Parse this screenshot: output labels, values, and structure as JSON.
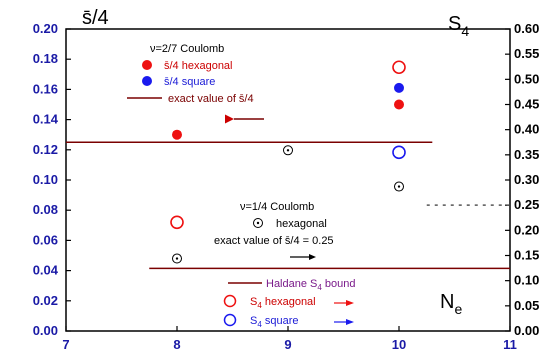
{
  "chart_data": {
    "type": "scatter",
    "x_axis": {
      "range": [
        7,
        11
      ],
      "ticks": [
        "7",
        "8",
        "9",
        "10",
        "11"
      ],
      "label": "N",
      "label_sub": "e"
    },
    "y_left": {
      "range": [
        0,
        0.2
      ],
      "ticks": [
        "0.00",
        "0.02",
        "0.04",
        "0.06",
        "0.08",
        "0.10",
        "0.12",
        "0.14",
        "0.16",
        "0.18",
        "0.20"
      ],
      "label": "s̄/4"
    },
    "y_right": {
      "range": [
        0,
        0.6
      ],
      "ticks": [
        "0.00",
        "0.05",
        "0.10",
        "0.15",
        "0.20",
        "0.25",
        "0.30",
        "0.35",
        "0.40",
        "0.45",
        "0.50",
        "0.55",
        "0.60"
      ],
      "label": "S",
      "label_sub": "4"
    },
    "series": [
      {
        "name": "s̄/4 hexagonal",
        "axis": "left",
        "marker": "filled",
        "color": "#ee1111",
        "points": [
          [
            8,
            0.13
          ],
          [
            10,
            0.15
          ]
        ]
      },
      {
        "name": "s̄/4 square",
        "axis": "left",
        "marker": "filled",
        "color": "#1a1aee",
        "points": [
          [
            10,
            0.161
          ]
        ]
      },
      {
        "name": "S4 hexagonal (ν=2/7)",
        "axis": "right",
        "marker": "open",
        "color": "#ee1111",
        "points": [
          [
            8,
            0.216
          ],
          [
            10,
            0.524
          ]
        ]
      },
      {
        "name": "S4 square (ν=2/7)",
        "axis": "right",
        "marker": "open",
        "color": "#1a1aee",
        "points": [
          [
            10,
            0.355
          ]
        ]
      },
      {
        "name": "ν=1/4 Coulomb hexagonal",
        "axis": "right",
        "marker": "dot-open",
        "color": "#000000",
        "points": [
          [
            8,
            0.144
          ],
          [
            9,
            0.359
          ],
          [
            10,
            0.287
          ]
        ]
      }
    ],
    "reference_lines": [
      {
        "name": "exact value of s̄/4",
        "axis": "left",
        "y": 0.125,
        "x_range": [
          7,
          10.3
        ],
        "color": "#7a0000",
        "style": "solid"
      },
      {
        "name": "Haldane S4 bound",
        "axis": "left",
        "y": 0.0415,
        "x_range": [
          7.75,
          11
        ],
        "color": "#7a0000",
        "style": "solid"
      },
      {
        "name": "exact value of s̄/4 = 0.25",
        "axis": "right",
        "y": 0.25,
        "x_range": [
          10.25,
          11
        ],
        "color": "#555555",
        "style": "dotted"
      }
    ],
    "annotations": {
      "nu27": "ν=2/7 Coulomb",
      "leg_hex": "s̄/4 hexagonal",
      "leg_sq": "s̄/4 square",
      "exact": "exact value of s̄/4",
      "nu14": "ν=1/4 Coulomb",
      "hexagonal": "hexagonal",
      "exact025": "exact value of s̄/4 = 0.25",
      "haldane": "Haldane S",
      "haldane_sub": "4",
      "haldane_tail": " bound",
      "s4hex": "S",
      "s4hex_sub": "4",
      "s4hex_tail": " hexagonal",
      "s4sq": "S",
      "s4sq_sub": "4",
      "s4sq_tail": " square"
    },
    "grid": false
  }
}
